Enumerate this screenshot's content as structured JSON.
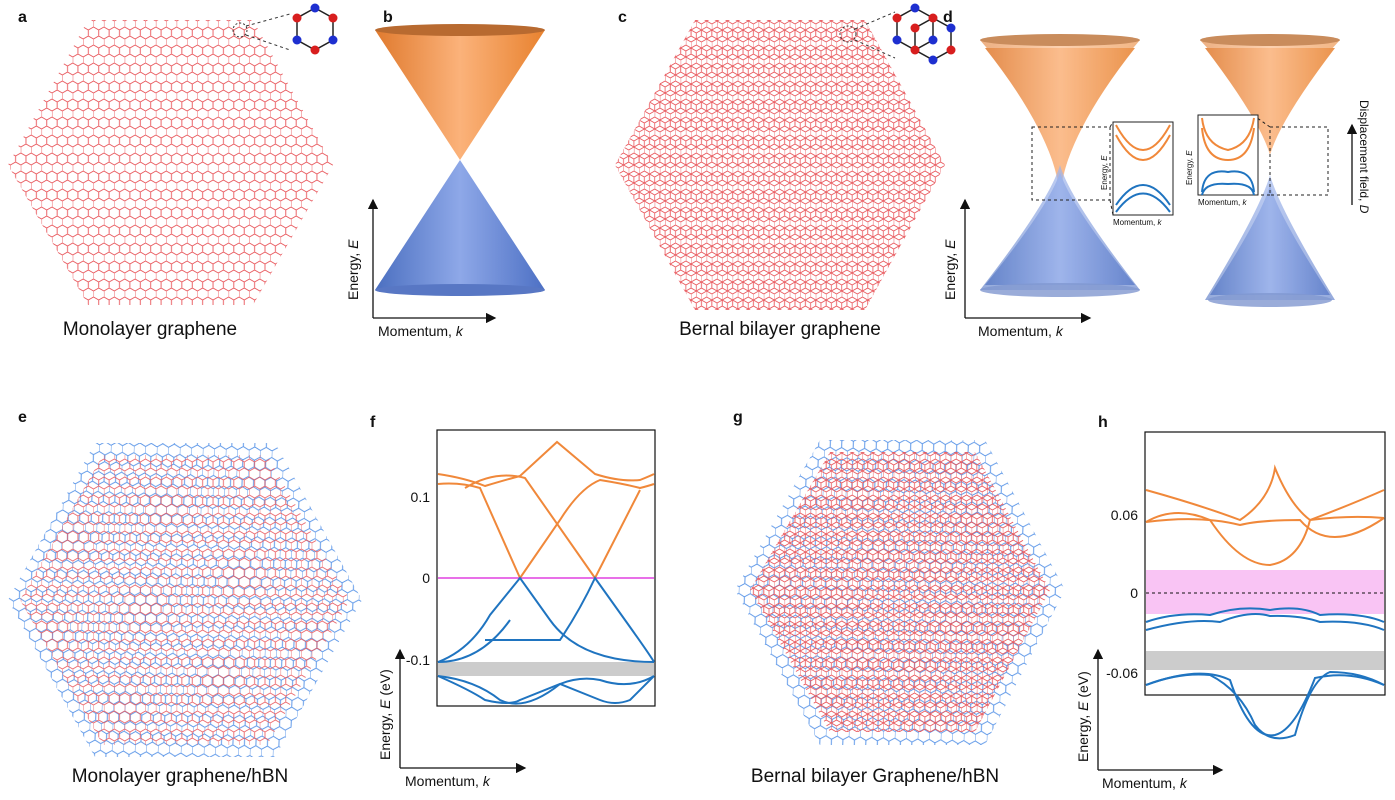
{
  "panels": {
    "a": {
      "label": "a",
      "caption": "Monolayer graphene"
    },
    "b": {
      "label": "b",
      "y_axis": {
        "text": "Energy, ",
        "symbol": "E"
      },
      "x_axis": {
        "text": "Momentum, ",
        "symbol": "k"
      }
    },
    "c": {
      "label": "c",
      "caption": "Bernal bilayer graphene"
    },
    "d": {
      "label": "d",
      "y_axis": {
        "text": "Energy, ",
        "symbol": "E"
      },
      "x_axis": {
        "text": "Momentum, ",
        "symbol": "k"
      },
      "inset_y_axis": {
        "text": "Energy, ",
        "symbol": "E"
      },
      "inset_x_axis": {
        "text": "Momentum, ",
        "symbol": "k"
      },
      "field_label": {
        "text": "Displacement field, ",
        "symbol": "D"
      }
    },
    "e": {
      "label": "e",
      "caption": "Monolayer graphene/hBN"
    },
    "f": {
      "label": "f",
      "yticks": [
        "0.1",
        "0",
        "-0.1"
      ],
      "y_axis": {
        "text": "Energy, ",
        "symbol": "E",
        "unit": " (eV)"
      },
      "x_axis": {
        "text": "Momentum, ",
        "symbol": "k"
      }
    },
    "g": {
      "label": "g",
      "caption": "Bernal bilayer Graphene/hBN"
    },
    "h": {
      "label": "h",
      "yticks": [
        "0.06",
        "0",
        "-0.06"
      ],
      "y_axis": {
        "text": "Energy, ",
        "symbol": "E",
        "unit": " (eV)"
      },
      "x_axis": {
        "text": "Momentum, ",
        "symbol": "k"
      }
    }
  }
}
